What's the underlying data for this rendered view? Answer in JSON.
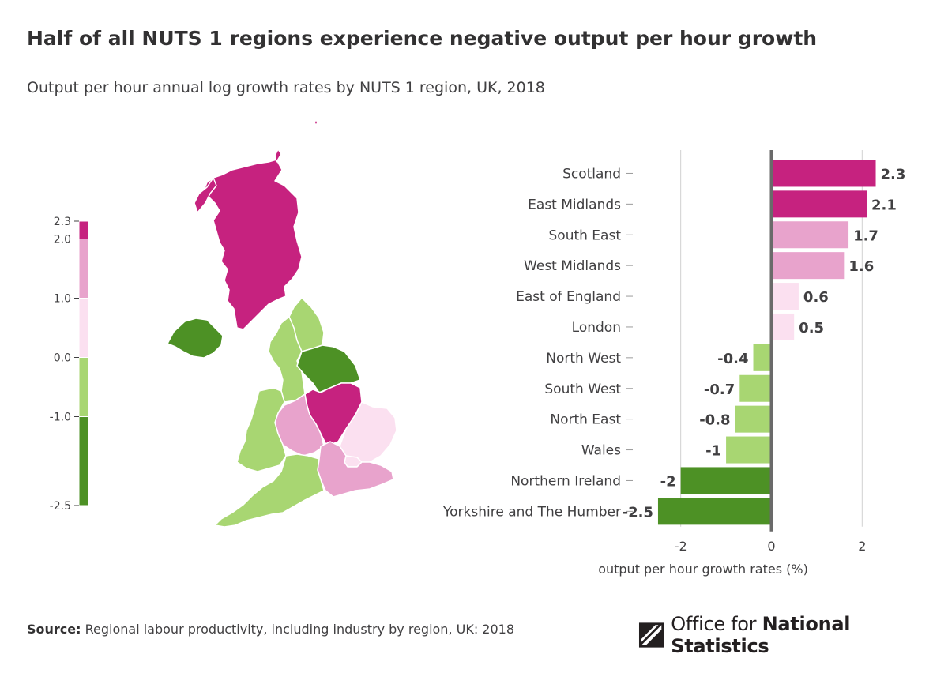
{
  "title": "Half of all NUTS 1 regions experience negative output per hour growth",
  "subtitle": "Output per hour annual log growth rates by NUTS 1 region, UK, 2018",
  "legend": {
    "ticks": [
      "2.3",
      "2.0",
      "1.0",
      "0.0",
      "-1.0",
      "-2.5"
    ],
    "bands": [
      {
        "from": 2.0,
        "to": 2.3,
        "color": "#c6227f"
      },
      {
        "from": 1.0,
        "to": 2.0,
        "color": "#e8a3cc"
      },
      {
        "from": 0.0,
        "to": 1.0,
        "color": "#fbe0f0"
      },
      {
        "from": -1.0,
        "to": 0.0,
        "color": "#a8d672"
      },
      {
        "from": -2.5,
        "to": -1.0,
        "color": "#4d9125"
      }
    ]
  },
  "map": {
    "regions": [
      {
        "name": "Scotland",
        "color": "#c6227f"
      },
      {
        "name": "Northern Ireland",
        "color": "#4d9125"
      },
      {
        "name": "North East",
        "color": "#a8d672"
      },
      {
        "name": "North West",
        "color": "#a8d672"
      },
      {
        "name": "Yorkshire and The Humber",
        "color": "#4d9125"
      },
      {
        "name": "East Midlands",
        "color": "#c6227f"
      },
      {
        "name": "West Midlands",
        "color": "#e8a3cc"
      },
      {
        "name": "Wales",
        "color": "#a8d672"
      },
      {
        "name": "East of England",
        "color": "#fbe0f0"
      },
      {
        "name": "London",
        "color": "#fbe0f0"
      },
      {
        "name": "South East",
        "color": "#e8a3cc"
      },
      {
        "name": "South West",
        "color": "#a8d672"
      }
    ]
  },
  "chart_data": {
    "type": "bar",
    "orientation": "horizontal",
    "title": "Half of all NUTS 1 regions experience negative output per hour growth",
    "subtitle": "Output per hour annual log growth rates by NUTS 1 region, UK, 2018",
    "categories": [
      "Scotland",
      "East Midlands",
      "South East",
      "West Midlands",
      "East of England",
      "London",
      "North West",
      "South West",
      "North East",
      "Wales",
      "Northern Ireland",
      "Yorkshire and The Humber"
    ],
    "values": [
      2.3,
      2.1,
      1.7,
      1.6,
      0.6,
      0.5,
      -0.4,
      -0.7,
      -0.8,
      -1,
      -2,
      -2.5
    ],
    "value_labels": [
      "2.3",
      "2.1",
      "1.7",
      "1.6",
      "0.6",
      "0.5",
      "-0.4",
      "-0.7",
      "-0.8",
      "-1",
      "-2",
      "-2.5"
    ],
    "colors": [
      "#c6227f",
      "#c6227f",
      "#e8a3cc",
      "#e8a3cc",
      "#fbe0f0",
      "#fbe0f0",
      "#a8d672",
      "#a8d672",
      "#a8d672",
      "#a8d672",
      "#4d9125",
      "#4d9125"
    ],
    "xticks": [
      -2,
      0,
      2
    ],
    "xtick_labels": [
      "-2",
      "0",
      "2"
    ],
    "xlim": [
      -2.9,
      2.5
    ],
    "xlabel": "output per hour growth rates (%)",
    "ylabel": "",
    "grid": true
  },
  "source": {
    "label": "Source:",
    "text": "Regional labour productivity, including industry by region, UK: 2018"
  },
  "logo": {
    "text_regular": "Office for ",
    "text_bold": "National Statistics"
  }
}
